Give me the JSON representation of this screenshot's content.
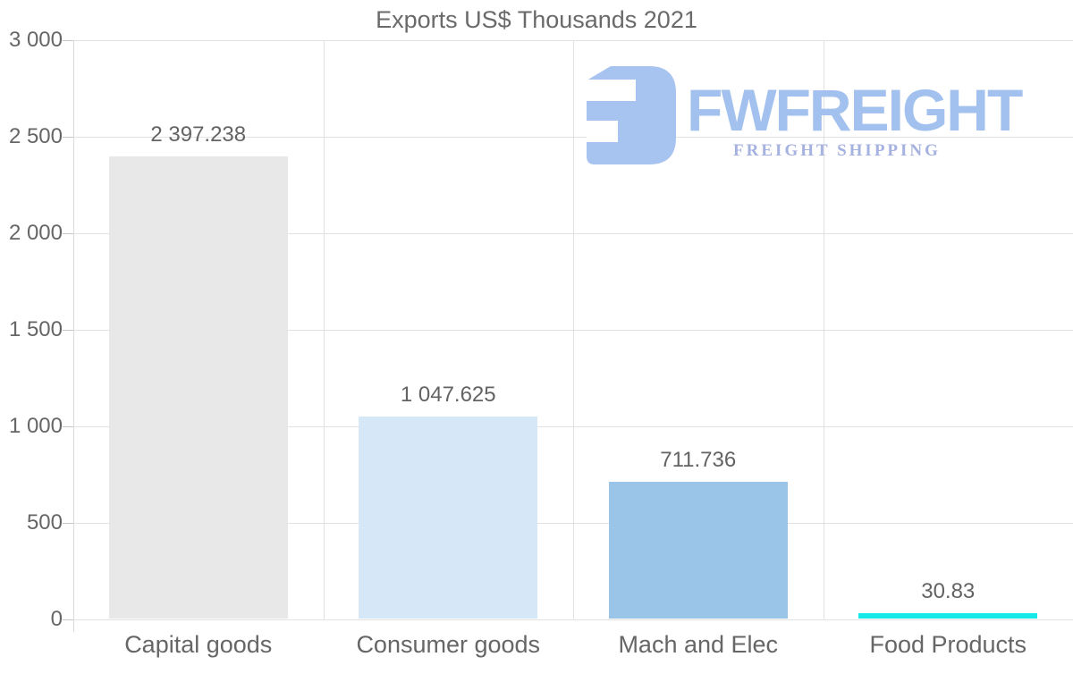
{
  "chart_data": {
    "type": "bar",
    "title": "Exports US$ Thousands 2021",
    "categories": [
      "Capital goods",
      "Consumer goods",
      "Mach and Elec",
      "Food Products"
    ],
    "values": [
      2397.238,
      1047.625,
      711.736,
      30.83
    ],
    "value_labels": [
      "2 397.238",
      "1 047.625",
      "711.736",
      "30.83"
    ],
    "bar_colors": [
      "#e8e8e8",
      "#d6e8f8",
      "#9ac5e9",
      "#17e9e9"
    ],
    "xlabel": "",
    "ylabel": "",
    "ylim": [
      0,
      3000
    ],
    "yticks": [
      0,
      500,
      1000,
      1500,
      2000,
      2500,
      3000
    ],
    "ytick_labels": [
      "0",
      "500",
      "1 000",
      "1 500",
      "2 000",
      "2 500",
      "3 000"
    ],
    "grid": {
      "horizontal": true,
      "vertical_category_separators": true
    },
    "legend": "none",
    "colors": {
      "title_text": "#6a6a6a",
      "axis_text": "#666666",
      "value_label_text": "#636363",
      "gridline": "#e2e2e2",
      "axis_line": "#d9d9d9",
      "tick": "#c6c6c6",
      "background": "#ffffff"
    }
  },
  "logo": {
    "wordmark": "FWFREIGHT",
    "tagline": "FREIGHT SHIPPING",
    "mark_icon": "fwfreight-mark-icon",
    "colors": {
      "mark": "#a7c3ef",
      "wordmark": "#a3c1ee",
      "tagline": "#a5b1df"
    }
  }
}
